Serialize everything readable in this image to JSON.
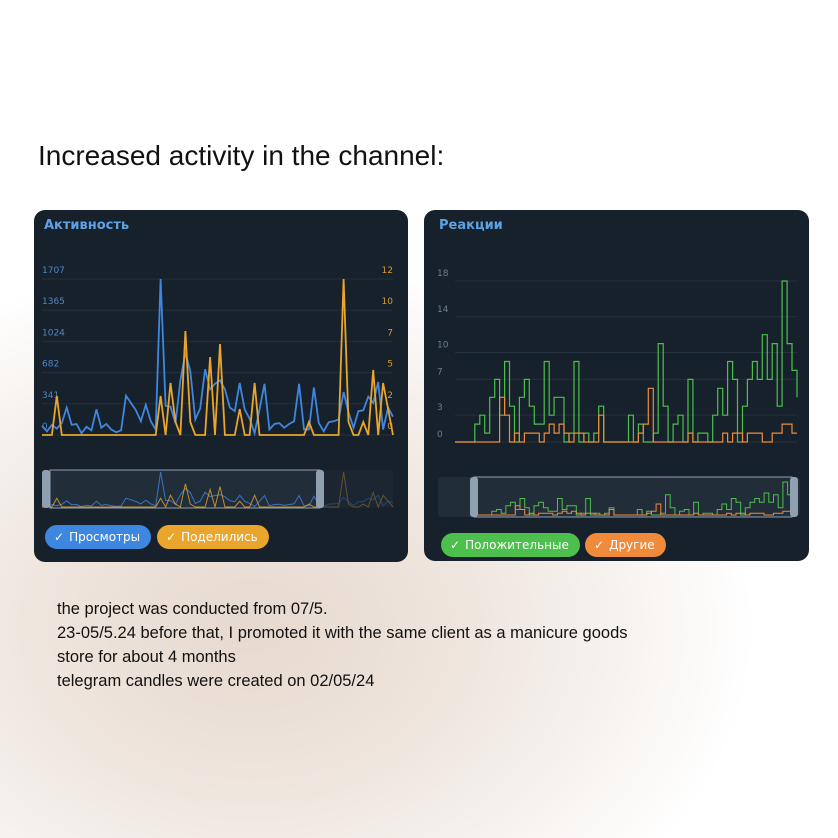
{
  "headline": "Increased activity in the channel:",
  "body_lines": [
    "the project was conducted from 07/5.",
    "23-05/5.24 before that, I promoted it with the same client as a manicure goods",
    "store for about 4 months",
    "telegram candles were created on 02/05/24"
  ],
  "colors": {
    "card_bg": "#17212b",
    "views": "#3e87e0",
    "shares": "#e9a52c",
    "positive": "#4cbf4c",
    "other": "#ef8b3a",
    "title": "#5ea2e6"
  },
  "chart_data": [
    {
      "type": "line",
      "title": "Активность",
      "left_ticks": [
        "0",
        "341",
        "682",
        "1024",
        "1365",
        "1707"
      ],
      "right_ticks": [
        "0",
        "2",
        "5",
        "7",
        "10",
        "12"
      ],
      "ylim_left": [
        0,
        1707
      ],
      "ylim_right": [
        0,
        12
      ],
      "grid": true,
      "series": [
        {
          "name": "Просмотры",
          "axis": "left",
          "values": [
            100,
            40,
            110,
            70,
            130,
            300,
            110,
            120,
            20,
            90,
            50,
            280,
            80,
            120,
            60,
            30,
            50,
            430,
            350,
            270,
            150,
            330,
            150,
            60,
            1707,
            320,
            310,
            130,
            600,
            900,
            700,
            170,
            290,
            720,
            500,
            560,
            600,
            500,
            300,
            260,
            570,
            280,
            180,
            20,
            280,
            560,
            60,
            120,
            130,
            80,
            120,
            150,
            560,
            60,
            60,
            520,
            130,
            40,
            140,
            150,
            170,
            470,
            250,
            80,
            260,
            270,
            420,
            350,
            580,
            60,
            300,
            200
          ]
        },
        {
          "name": "Поделились",
          "axis": "right",
          "values": [
            0,
            0,
            0,
            3,
            0,
            0,
            0,
            0,
            0,
            0,
            0,
            0,
            0,
            0,
            0,
            0,
            0,
            0,
            0,
            0,
            0,
            0,
            0,
            0,
            3,
            0,
            4,
            1,
            0,
            8,
            1,
            0,
            0,
            0,
            6,
            0,
            7,
            0,
            0,
            0,
            2,
            0,
            0,
            4,
            0,
            0,
            0,
            0,
            0,
            0,
            0,
            0,
            0,
            0,
            1,
            0,
            0,
            0,
            0,
            0,
            0,
            12,
            1,
            0,
            0,
            1,
            0,
            5,
            0,
            4,
            2,
            0
          ]
        }
      ]
    },
    {
      "type": "line",
      "title": "Реакции",
      "step": true,
      "left_ticks": [
        "0",
        "3",
        "7",
        "10",
        "14",
        "18"
      ],
      "ylim": [
        0,
        18
      ],
      "grid": true,
      "series": [
        {
          "name": "Положительные",
          "values": [
            0,
            0,
            0,
            0,
            2,
            3,
            1,
            5,
            7,
            3,
            9,
            4,
            0,
            5,
            7,
            4,
            2,
            2,
            9,
            3,
            5,
            5,
            0,
            1,
            9,
            0,
            1,
            0,
            1,
            4,
            0,
            0,
            0,
            0,
            0,
            3,
            0,
            2,
            0,
            0,
            1,
            11,
            4,
            0,
            2,
            3,
            0,
            7,
            0,
            1,
            1,
            0,
            3,
            6,
            3,
            9,
            7,
            0,
            4,
            7,
            9,
            7,
            12,
            7,
            11,
            4,
            18,
            11,
            8,
            5
          ]
        },
        {
          "name": "Другие",
          "values": [
            0,
            0,
            0,
            0,
            0,
            0,
            0,
            0,
            0,
            5,
            3,
            0,
            1,
            0,
            1,
            1,
            1,
            0,
            1,
            2,
            1,
            2,
            1,
            0,
            1,
            1,
            0,
            0,
            0,
            3,
            0,
            0,
            0,
            0,
            0,
            0,
            0,
            1,
            2,
            6,
            0,
            0,
            0,
            0,
            0,
            0,
            0,
            1,
            0,
            0,
            0,
            0,
            0,
            0,
            1,
            0,
            1,
            1,
            0,
            1,
            1,
            1,
            0,
            0,
            1,
            1,
            2,
            2,
            1,
            1
          ]
        }
      ]
    }
  ]
}
